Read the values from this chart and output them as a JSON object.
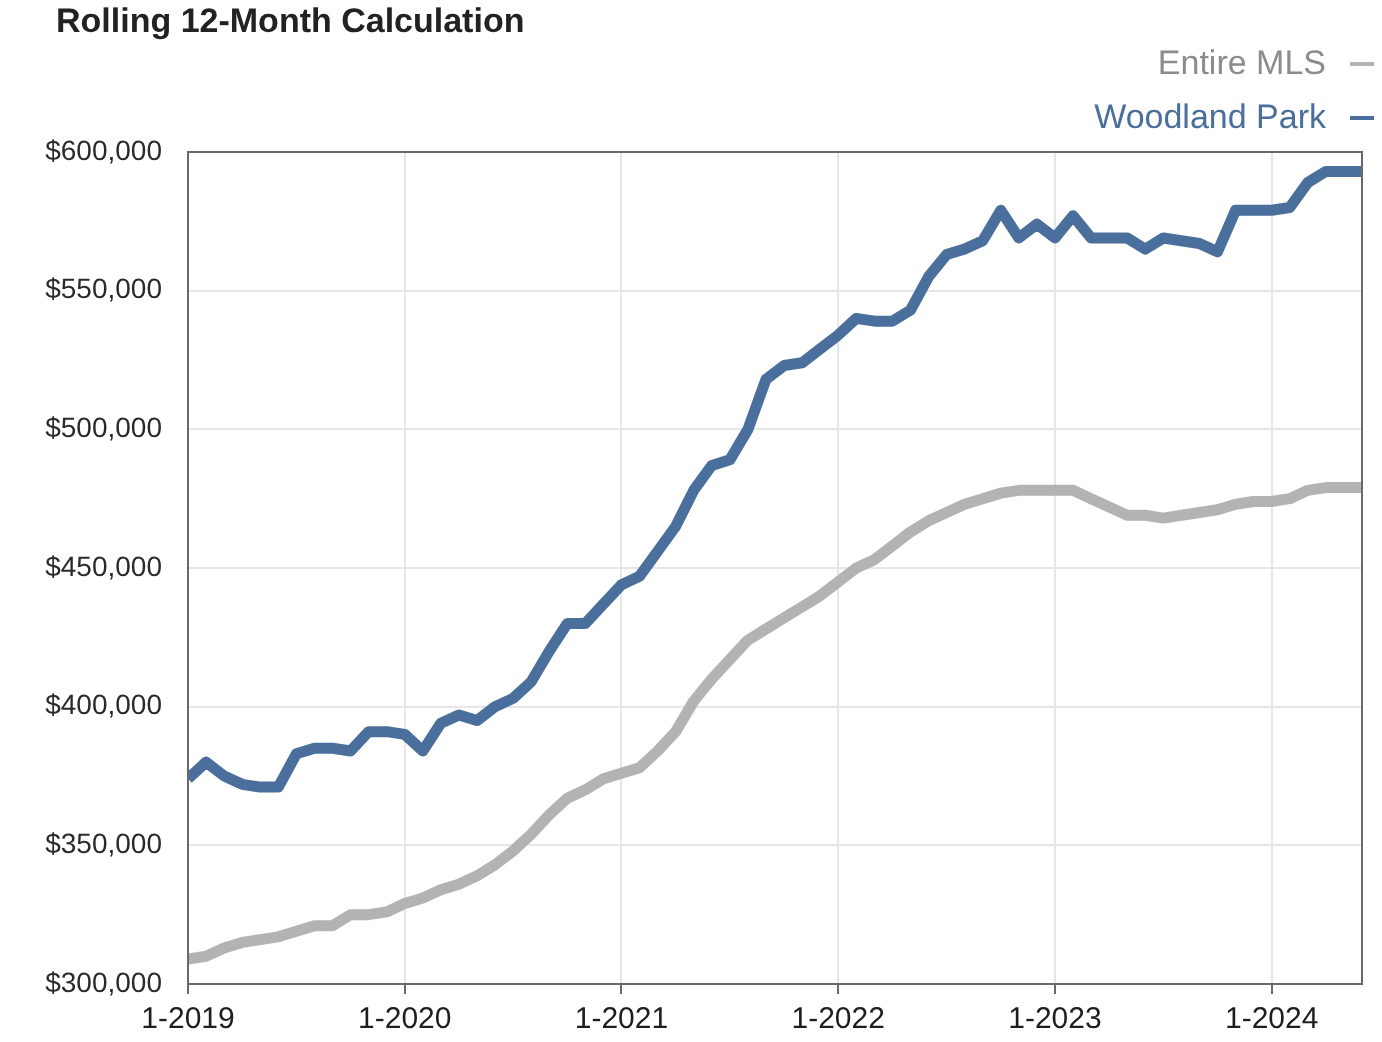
{
  "chart_data": {
    "type": "line",
    "title": "Rolling 12-Month Calculation",
    "x": [
      "2019-01",
      "2019-02",
      "2019-03",
      "2019-04",
      "2019-05",
      "2019-06",
      "2019-07",
      "2019-08",
      "2019-09",
      "2019-10",
      "2019-11",
      "2019-12",
      "2020-01",
      "2020-02",
      "2020-03",
      "2020-04",
      "2020-05",
      "2020-06",
      "2020-07",
      "2020-08",
      "2020-09",
      "2020-10",
      "2020-11",
      "2020-12",
      "2021-01",
      "2021-02",
      "2021-03",
      "2021-04",
      "2021-05",
      "2021-06",
      "2021-07",
      "2021-08",
      "2021-09",
      "2021-10",
      "2021-11",
      "2021-12",
      "2022-01",
      "2022-02",
      "2022-03",
      "2022-04",
      "2022-05",
      "2022-06",
      "2022-07",
      "2022-08",
      "2022-09",
      "2022-10",
      "2022-11",
      "2022-12",
      "2023-01",
      "2023-02",
      "2023-03",
      "2023-04",
      "2023-05",
      "2023-06",
      "2023-07",
      "2023-08",
      "2023-09",
      "2023-10",
      "2023-11",
      "2023-12",
      "2024-01",
      "2024-02",
      "2024-03",
      "2024-04",
      "2024-05",
      "2024-06"
    ],
    "series": [
      {
        "name": "Entire MLS",
        "color": "#b3b3b3",
        "values": [
          309000,
          310000,
          313000,
          315000,
          316000,
          317000,
          319000,
          321000,
          321000,
          325000,
          325000,
          326000,
          329000,
          331000,
          334000,
          336000,
          339000,
          343000,
          348000,
          354000,
          361000,
          367000,
          370000,
          374000,
          376000,
          378000,
          384000,
          391000,
          402000,
          410000,
          417000,
          424000,
          428000,
          432000,
          436000,
          440000,
          445000,
          450000,
          453000,
          458000,
          463000,
          467000,
          470000,
          473000,
          475000,
          477000,
          478000,
          478000,
          478000,
          478000,
          475000,
          472000,
          469000,
          469000,
          468000,
          469000,
          470000,
          471000,
          473000,
          474000,
          474000,
          475000,
          478000,
          479000,
          479000,
          479000
        ]
      },
      {
        "name": "Woodland Park",
        "color": "#4a6f9c",
        "values": [
          374000,
          380000,
          375000,
          372000,
          371000,
          371000,
          383000,
          385000,
          385000,
          384000,
          391000,
          391000,
          390000,
          384000,
          394000,
          397000,
          395000,
          400000,
          403000,
          409000,
          420000,
          430000,
          430000,
          437000,
          444000,
          447000,
          456000,
          465000,
          478000,
          487000,
          489000,
          500000,
          518000,
          523000,
          524000,
          529000,
          534000,
          540000,
          539000,
          539000,
          543000,
          555000,
          563000,
          565000,
          568000,
          579000,
          569000,
          574000,
          569000,
          577000,
          569000,
          569000,
          569000,
          565000,
          569000,
          568000,
          567000,
          564000,
          579000,
          579000,
          579000,
          580000,
          589000,
          593000,
          593000,
          593000
        ]
      }
    ],
    "xlim": [
      "2019-01",
      "2024-06"
    ],
    "xticks": [
      {
        "value": "2019-01",
        "label": "1-2019"
      },
      {
        "value": "2020-01",
        "label": "1-2020"
      },
      {
        "value": "2021-01",
        "label": "1-2021"
      },
      {
        "value": "2022-01",
        "label": "1-2022"
      },
      {
        "value": "2023-01",
        "label": "1-2023"
      },
      {
        "value": "2024-01",
        "label": "1-2024"
      }
    ],
    "ylim": [
      300000,
      600000
    ],
    "yticks": [
      {
        "value": 300000,
        "label": "$300,000"
      },
      {
        "value": 350000,
        "label": "$350,000"
      },
      {
        "value": 400000,
        "label": "$400,000"
      },
      {
        "value": 450000,
        "label": "$450,000"
      },
      {
        "value": 500000,
        "label": "$500,000"
      },
      {
        "value": 550000,
        "label": "$550,000"
      },
      {
        "value": 600000,
        "label": "$600,000"
      }
    ],
    "grid": true,
    "legend": "top right",
    "marker": "none"
  }
}
